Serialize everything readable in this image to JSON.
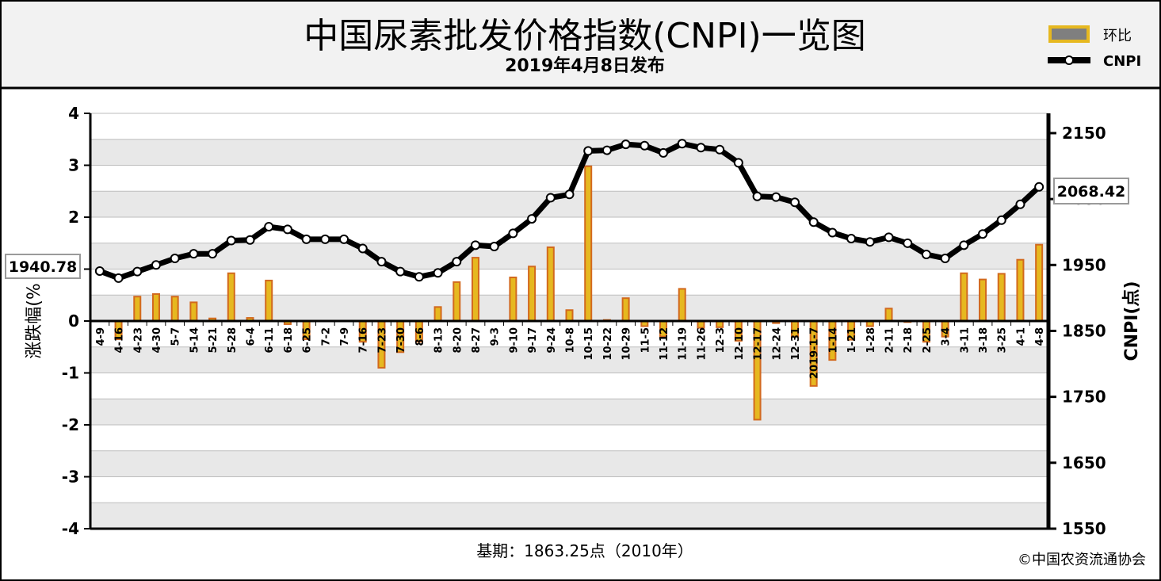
{
  "header": {
    "title": "中国尿素批发价格指数(CNPI)一览图",
    "subtitle": "2019年4月8日发布"
  },
  "legend": {
    "bar_label": "环比",
    "line_label": "CNPI"
  },
  "footer": {
    "base_note": "基期：1863.25点（2010年）",
    "copyright": "©中国农资流通协会"
  },
  "callouts": {
    "first_value": "1940.78",
    "last_value": "2068.42"
  },
  "colors": {
    "bar_fill": "#e6b820",
    "bar_border": "#d2691e",
    "line": "#000000",
    "header_bg": "#f2f2f2",
    "band": "#e8e8e8"
  },
  "chart_data": {
    "type": "bar",
    "title": "中国尿素批发价格指数(CNPI)一览图",
    "subtitle": "2019年4月8日发布",
    "ylabel": "涨跌幅(%",
    "y2label": "CNPI(点)",
    "ylim": [
      -4,
      4
    ],
    "y2lim": [
      1550,
      2180
    ],
    "yticks": [
      "4",
      "3",
      "2",
      "1",
      "0",
      "-1",
      "-2",
      "-3",
      "-4"
    ],
    "y2ticks": [
      "2150",
      "2050",
      "1950",
      "1850",
      "1750",
      "1650",
      "1550"
    ],
    "categories": [
      "4-9",
      "4-16",
      "4-23",
      "4-30",
      "5-7",
      "5-14",
      "5-21",
      "5-28",
      "6-4",
      "6-11",
      "6-18",
      "6-25",
      "7-2",
      "7-9",
      "7-16",
      "7-23",
      "7-30",
      "8-6",
      "8-13",
      "8-20",
      "8-27",
      "9-3",
      "9-10",
      "9-17",
      "9-24",
      "10-8",
      "10-15",
      "10-22",
      "10-29",
      "11-5",
      "11-12",
      "11-19",
      "11-26",
      "12-3",
      "12-10",
      "12-17",
      "12-24",
      "12-31",
      "2019-1-7",
      "1-14",
      "1-21",
      "1-28",
      "2-11",
      "2-18",
      "2-25",
      "3-4",
      "3-11",
      "3-18",
      "3-25",
      "4-1",
      "4-8"
    ],
    "series": [
      {
        "name": "环比",
        "type": "bar",
        "values": [
          0,
          -0.35,
          0.47,
          0.52,
          0.47,
          0.36,
          0.05,
          0.92,
          0.06,
          0.78,
          -0.06,
          -0.35,
          0,
          0,
          -0.4,
          -0.9,
          -0.6,
          -0.4,
          0.27,
          0.75,
          1.22,
          0,
          0.84,
          1.05,
          1.42,
          0.21,
          2.98,
          0.02,
          0.44,
          -0.1,
          -0.3,
          0.62,
          -0.13,
          -0.12,
          -0.38,
          -1.9,
          -0.04,
          -0.3,
          -1.25,
          -0.75,
          -0.36,
          -0.1,
          0.24,
          -0.02,
          -0.4,
          -0.3,
          0.92,
          0.8,
          0.91,
          1.18,
          1.47
        ]
      },
      {
        "name": "CNPI",
        "type": "line",
        "values": [
          1940.78,
          1930,
          1940,
          1950,
          1960,
          1967,
          1967,
          1987,
          1988,
          2008,
          2004,
          1989,
          1989,
          1989,
          1975,
          1955,
          1940,
          1932,
          1938,
          1955,
          1980,
          1978,
          1998,
          2020,
          2052,
          2057,
          2123,
          2124,
          2133,
          2131,
          2120,
          2134,
          2128,
          2125,
          2105,
          2054,
          2053,
          2045,
          2015,
          1999,
          1990,
          1985,
          1992,
          1983,
          1966,
          1960,
          1980,
          1997,
          2018,
          2042,
          2068.42
        ]
      }
    ],
    "grid": true,
    "legend_position": "top-right"
  }
}
